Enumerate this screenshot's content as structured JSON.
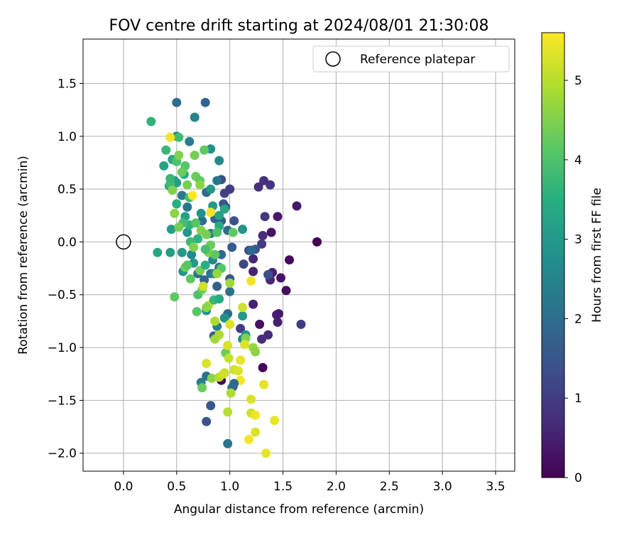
{
  "chart_data": {
    "type": "scatter",
    "title": "FOV centre drift starting at 2024/08/01 21:30:08",
    "xlabel": "Angular distance from reference (arcmin)",
    "ylabel": "Rotation from reference (arcmin)",
    "xlim": [
      -0.38,
      3.68
    ],
    "ylim": [
      -2.17,
      1.92
    ],
    "x_ticks": [
      0.0,
      0.5,
      1.0,
      1.5,
      2.0,
      2.5,
      3.0,
      3.5
    ],
    "x_tick_labels": [
      "0.0",
      "0.5",
      "1.0",
      "1.5",
      "2.0",
      "2.5",
      "3.0",
      "3.5"
    ],
    "y_ticks": [
      -2.0,
      -1.5,
      -1.0,
      -0.5,
      0.0,
      0.5,
      1.0,
      1.5
    ],
    "y_tick_labels": [
      "−2.0",
      "−1.5",
      "−1.0",
      "−0.5",
      "0.0",
      "0.5",
      "1.0",
      "1.5"
    ],
    "grid": true,
    "legend": {
      "position": "top-right",
      "entries": [
        "Reference platepar"
      ]
    },
    "colorbar": {
      "label": "Hours from first FF file",
      "colormap": "viridis",
      "range": [
        0,
        5.6
      ],
      "ticks": [
        0,
        1,
        2,
        3,
        4,
        5
      ],
      "tick_labels": [
        "0",
        "1",
        "2",
        "3",
        "4",
        "5"
      ]
    },
    "reference_point": {
      "name": "Reference platepar",
      "x": 0.0,
      "y": 0.0
    },
    "series": [
      {
        "points": [
          [
            1.82,
            0.0,
            0.0
          ],
          [
            1.56,
            -0.17,
            0.15
          ],
          [
            1.53,
            -0.46,
            0.2
          ],
          [
            1.48,
            -0.34,
            0.3
          ],
          [
            1.45,
            0.24,
            0.35
          ],
          [
            1.46,
            -0.68,
            0.4
          ],
          [
            1.44,
            -0.69,
            0.45
          ],
          [
            1.45,
            -0.76,
            0.5
          ],
          [
            1.4,
            -0.29,
            0.55
          ],
          [
            1.38,
            -0.36,
            0.6
          ],
          [
            1.36,
            -0.88,
            0.65
          ],
          [
            1.3,
            -0.92,
            0.7
          ],
          [
            1.31,
            -1.19,
            0.1
          ],
          [
            1.28,
            -0.78,
            0.25
          ],
          [
            1.22,
            -0.59,
            0.5
          ],
          [
            1.22,
            -0.28,
            0.55
          ],
          [
            1.22,
            -0.16,
            0.6
          ],
          [
            1.27,
            0.52,
            0.75
          ],
          [
            1.32,
            0.58,
            0.8
          ],
          [
            1.38,
            0.54,
            0.85
          ],
          [
            1.63,
            0.34,
            0.4
          ],
          [
            1.39,
            0.09,
            0.3
          ],
          [
            1.31,
            0.06,
            0.7
          ],
          [
            1.3,
            -0.02,
            0.95
          ],
          [
            1.33,
            0.24,
            0.9
          ],
          [
            1.67,
            -0.78,
            1.0
          ],
          [
            1.36,
            -0.31,
            1.3
          ],
          [
            1.24,
            -0.07,
            1.5
          ],
          [
            1.18,
            -0.08,
            1.1
          ],
          [
            1.13,
            -0.21,
            1.2
          ],
          [
            1.1,
            -0.82,
            1.0
          ],
          [
            1.0,
            0.5,
            1.2
          ],
          [
            0.95,
            0.46,
            1.1
          ],
          [
            1.04,
            0.2,
            1.4
          ],
          [
            0.92,
            0.59,
            1.3
          ],
          [
            0.94,
            0.36,
            1.5
          ],
          [
            1.02,
            -0.05,
            1.6
          ],
          [
            0.98,
            0.11,
            1.9
          ],
          [
            1.0,
            0.5,
            1.0
          ],
          [
            0.86,
            0.22,
            1.8
          ],
          [
            0.96,
            0.33,
            1.4
          ],
          [
            0.92,
            0.2,
            1.6
          ],
          [
            0.92,
            -0.12,
            2.0
          ],
          [
            0.88,
            -0.42,
            1.7
          ],
          [
            0.98,
            -0.68,
            2.0
          ],
          [
            1.0,
            -0.47,
            2.1
          ],
          [
            1.2,
            -0.08,
            1.9
          ],
          [
            1.0,
            -0.35,
            1.6
          ],
          [
            0.85,
            -0.89,
            1.6
          ],
          [
            1.02,
            -1.38,
            2.5
          ],
          [
            1.03,
            -1.37,
            1.8
          ],
          [
            0.73,
            -1.33,
            2.4
          ],
          [
            0.78,
            -1.27,
            2.1
          ],
          [
            0.82,
            -1.55,
            1.5
          ],
          [
            0.78,
            -1.7,
            1.4
          ],
          [
            0.98,
            -1.91,
            2.2
          ],
          [
            0.92,
            -1.31,
            0.2
          ],
          [
            0.77,
            1.32,
            1.8
          ],
          [
            0.5,
            1.32,
            2.0
          ],
          [
            0.67,
            1.18,
            2.5
          ],
          [
            0.82,
            0.88,
            2.8
          ],
          [
            0.9,
            0.77,
            2.6
          ],
          [
            0.62,
            0.95,
            2.3
          ],
          [
            0.5,
            1.0,
            2.4
          ],
          [
            0.88,
            0.58,
            2.2
          ],
          [
            0.78,
            0.47,
            2.0
          ],
          [
            0.55,
            0.44,
            2.3
          ],
          [
            0.6,
            0.33,
            2.2
          ],
          [
            0.74,
            0.2,
            2.0
          ],
          [
            0.82,
            0.08,
            2.4
          ],
          [
            0.84,
            -0.17,
            2.6
          ],
          [
            0.82,
            -0.3,
            2.2
          ],
          [
            0.7,
            -0.3,
            2.0
          ],
          [
            0.76,
            -0.36,
            1.8
          ],
          [
            0.85,
            -0.3,
            2.5
          ],
          [
            0.9,
            -0.24,
            2.0
          ],
          [
            0.73,
            0.27,
            2.8
          ],
          [
            0.88,
            -0.8,
            2.4
          ],
          [
            1.12,
            -0.92,
            2.7
          ],
          [
            1.15,
            -0.88,
            2.9
          ],
          [
            1.12,
            -0.7,
            3.0
          ],
          [
            0.95,
            -0.72,
            2.8
          ],
          [
            0.9,
            0.25,
            3.2
          ],
          [
            0.9,
            0.15,
            3.4
          ],
          [
            1.12,
            0.12,
            2.9
          ],
          [
            0.84,
            0.34,
            3.0
          ],
          [
            0.95,
            0.31,
            3.3
          ],
          [
            0.82,
            0.5,
            3.0
          ],
          [
            0.58,
            0.24,
            3.2
          ],
          [
            0.48,
            0.58,
            3.0
          ],
          [
            0.46,
            0.78,
            3.4
          ],
          [
            0.38,
            0.72,
            3.2
          ],
          [
            0.43,
            0.53,
            3.3
          ],
          [
            0.5,
            0.36,
            3.5
          ],
          [
            0.6,
            0.09,
            3.0
          ],
          [
            0.62,
            0.16,
            3.6
          ],
          [
            0.5,
            0.56,
            3.1
          ],
          [
            0.57,
            0.64,
            3.3
          ],
          [
            0.45,
            0.12,
            3.1
          ],
          [
            0.56,
            -0.28,
            2.9
          ],
          [
            0.66,
            -0.2,
            3.0
          ],
          [
            0.78,
            -0.65,
            2.8
          ],
          [
            0.55,
            -0.1,
            3.0
          ],
          [
            0.32,
            -0.1,
            3.3
          ],
          [
            0.26,
            1.14,
            3.6
          ],
          [
            0.52,
            0.99,
            3.8
          ],
          [
            0.4,
            0.87,
            3.7
          ],
          [
            0.44,
            0.55,
            3.8
          ],
          [
            0.56,
            0.18,
            3.9
          ],
          [
            0.7,
            0.03,
            3.6
          ],
          [
            0.5,
            0.76,
            4.0
          ],
          [
            0.44,
            0.6,
            3.7
          ],
          [
            0.58,
            0.72,
            4.1
          ],
          [
            0.62,
            0.42,
            3.9
          ],
          [
            0.68,
            0.62,
            4.3
          ],
          [
            0.72,
            0.58,
            4.2
          ],
          [
            0.6,
            0.54,
            4.4
          ],
          [
            0.55,
            0.66,
            4.3
          ],
          [
            0.68,
            0.18,
            4.1
          ],
          [
            0.73,
            0.11,
            4.5
          ],
          [
            0.78,
            0.07,
            4.4
          ],
          [
            0.82,
            -0.03,
            4.3
          ],
          [
            0.58,
            -0.24,
            4.4
          ],
          [
            0.6,
            -0.22,
            4.1
          ],
          [
            0.63,
            -0.35,
            4.2
          ],
          [
            0.7,
            -0.5,
            4.0
          ],
          [
            0.74,
            -0.45,
            4.3
          ],
          [
            0.69,
            -0.66,
            4.1
          ],
          [
            0.48,
            -0.52,
            4.2
          ],
          [
            0.88,
            0.09,
            4.0
          ],
          [
            0.92,
            -0.25,
            4.1
          ],
          [
            1.03,
            0.09,
            4.2
          ],
          [
            0.76,
            0.87,
            4.2
          ],
          [
            0.67,
            0.82,
            4.4
          ],
          [
            0.52,
            0.82,
            4.5
          ],
          [
            0.46,
            0.49,
            4.5
          ],
          [
            0.48,
            0.27,
            4.6
          ],
          [
            0.52,
            0.14,
            4.4
          ],
          [
            0.72,
            0.54,
            4.6
          ],
          [
            0.72,
            -0.27,
            4.4
          ],
          [
            0.8,
            -0.1,
            4.5
          ],
          [
            0.88,
            -0.3,
            4.7
          ],
          [
            0.9,
            -0.88,
            4.9
          ],
          [
            1.0,
            -0.39,
            4.8
          ],
          [
            0.86,
            -0.75,
            4.9
          ],
          [
            1.15,
            -0.91,
            4.5
          ],
          [
            1.22,
            -1.0,
            4.7
          ],
          [
            1.24,
            -1.04,
            4.6
          ],
          [
            0.96,
            -1.05,
            4.3
          ],
          [
            0.74,
            -1.38,
            4.3
          ],
          [
            0.83,
            -1.29,
            4.6
          ],
          [
            0.86,
            -0.92,
            4.8
          ],
          [
            0.9,
            -1.28,
            5.0
          ],
          [
            0.99,
            -1.1,
            5.1
          ],
          [
            1.04,
            -1.21,
            5.2
          ],
          [
            1.01,
            -1.43,
            4.9
          ],
          [
            1.08,
            -1.22,
            5.3
          ],
          [
            1.1,
            -1.12,
            5.4
          ],
          [
            1.12,
            -0.62,
            5.2
          ],
          [
            1.14,
            -0.97,
            5.3
          ],
          [
            1.2,
            -0.37,
            5.5
          ],
          [
            0.95,
            -1.24,
            5.0
          ],
          [
            0.94,
            -1.25,
            5.2
          ],
          [
            1.0,
            -0.78,
            5.3
          ],
          [
            0.98,
            -0.98,
            5.3
          ],
          [
            0.98,
            -1.61,
            5.0
          ],
          [
            1.1,
            -1.31,
            5.5
          ],
          [
            1.2,
            -1.49,
            5.3
          ],
          [
            1.32,
            -1.35,
            5.4
          ],
          [
            1.2,
            -1.62,
            5.2
          ],
          [
            1.24,
            -1.64,
            5.5
          ],
          [
            1.24,
            -1.8,
            5.3
          ],
          [
            1.18,
            -1.87,
            5.5
          ],
          [
            1.34,
            -2.0,
            5.4
          ],
          [
            1.42,
            -1.69,
            5.4
          ],
          [
            0.78,
            -1.15,
            5.3
          ],
          [
            0.75,
            -0.42,
            5.2
          ],
          [
            0.8,
            -0.6,
            5.0
          ],
          [
            0.78,
            -0.62,
            4.6
          ],
          [
            0.82,
            0.28,
            5.5
          ],
          [
            0.65,
            0.44,
            5.6
          ],
          [
            0.44,
            0.99,
            5.5
          ],
          [
            1.04,
            -1.34,
            1.9
          ],
          [
            0.63,
            0.0,
            3.8
          ],
          [
            0.77,
            -0.22,
            3.5
          ],
          [
            0.64,
            -0.12,
            2.6
          ],
          [
            0.44,
            -0.1,
            3.1
          ],
          [
            0.85,
            -0.55,
            3.7
          ],
          [
            0.9,
            -0.54,
            3.4
          ],
          [
            0.66,
            -0.05,
            4.5
          ],
          [
            0.77,
            -0.07,
            3.9
          ],
          [
            0.86,
            -0.12,
            4.2
          ]
        ]
      }
    ]
  }
}
